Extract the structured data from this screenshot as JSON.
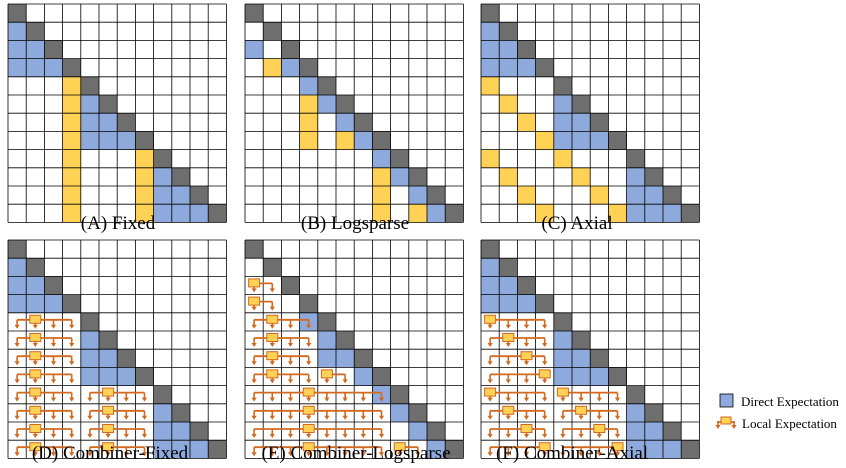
{
  "colors": {
    "direct": "#8EA9DB",
    "diagonal": "#6E6E6E",
    "local": "#FFD154",
    "arrow": "#D2691E",
    "grid": "#000000",
    "background": "#FFFFFF"
  },
  "grid_size": 12,
  "panels": [
    {
      "id": "A",
      "caption": "(A) Fixed",
      "pattern": "fixed",
      "combiner": false,
      "cells": [
        {
          "row": 1,
          "col": 0,
          "type": "direct"
        },
        {
          "row": 2,
          "col": 0,
          "type": "direct"
        },
        {
          "row": 2,
          "col": 1,
          "type": "direct"
        },
        {
          "row": 3,
          "col": 0,
          "type": "direct"
        },
        {
          "row": 3,
          "col": 1,
          "type": "direct"
        },
        {
          "row": 3,
          "col": 2,
          "type": "direct"
        },
        {
          "row": 4,
          "col": 3,
          "type": "local"
        },
        {
          "row": 5,
          "col": 3,
          "type": "local"
        },
        {
          "row": 5,
          "col": 4,
          "type": "direct"
        },
        {
          "row": 6,
          "col": 3,
          "type": "local"
        },
        {
          "row": 6,
          "col": 4,
          "type": "direct"
        },
        {
          "row": 6,
          "col": 5,
          "type": "direct"
        },
        {
          "row": 7,
          "col": 3,
          "type": "local"
        },
        {
          "row": 7,
          "col": 4,
          "type": "direct"
        },
        {
          "row": 7,
          "col": 5,
          "type": "direct"
        },
        {
          "row": 7,
          "col": 6,
          "type": "direct"
        },
        {
          "row": 8,
          "col": 3,
          "type": "local"
        },
        {
          "row": 8,
          "col": 7,
          "type": "local"
        },
        {
          "row": 9,
          "col": 3,
          "type": "local"
        },
        {
          "row": 9,
          "col": 7,
          "type": "local"
        },
        {
          "row": 9,
          "col": 8,
          "type": "direct"
        },
        {
          "row": 10,
          "col": 3,
          "type": "local"
        },
        {
          "row": 10,
          "col": 7,
          "type": "local"
        },
        {
          "row": 10,
          "col": 8,
          "type": "direct"
        },
        {
          "row": 10,
          "col": 9,
          "type": "direct"
        },
        {
          "row": 11,
          "col": 3,
          "type": "local"
        },
        {
          "row": 11,
          "col": 7,
          "type": "local"
        },
        {
          "row": 11,
          "col": 8,
          "type": "direct"
        },
        {
          "row": 11,
          "col": 9,
          "type": "direct"
        },
        {
          "row": 11,
          "col": 10,
          "type": "direct"
        }
      ]
    },
    {
      "id": "B",
      "caption": "(B) Logsparse",
      "pattern": "logsparse",
      "combiner": false,
      "cells": [
        {
          "row": 2,
          "col": 0,
          "type": "direct"
        },
        {
          "row": 3,
          "col": 1,
          "type": "local"
        },
        {
          "row": 3,
          "col": 2,
          "type": "direct"
        },
        {
          "row": 4,
          "col": 3,
          "type": "direct"
        },
        {
          "row": 5,
          "col": 3,
          "type": "local"
        },
        {
          "row": 5,
          "col": 4,
          "type": "direct"
        },
        {
          "row": 6,
          "col": 3,
          "type": "local"
        },
        {
          "row": 6,
          "col": 5,
          "type": "direct"
        },
        {
          "row": 7,
          "col": 3,
          "type": "local"
        },
        {
          "row": 7,
          "col": 5,
          "type": "local"
        },
        {
          "row": 7,
          "col": 6,
          "type": "direct"
        },
        {
          "row": 8,
          "col": 7,
          "type": "direct"
        },
        {
          "row": 9,
          "col": 7,
          "type": "local"
        },
        {
          "row": 9,
          "col": 8,
          "type": "direct"
        },
        {
          "row": 10,
          "col": 7,
          "type": "local"
        },
        {
          "row": 10,
          "col": 9,
          "type": "direct"
        },
        {
          "row": 11,
          "col": 7,
          "type": "local"
        },
        {
          "row": 11,
          "col": 9,
          "type": "local"
        },
        {
          "row": 11,
          "col": 10,
          "type": "direct"
        }
      ]
    },
    {
      "id": "C",
      "caption": "(C) Axial",
      "pattern": "axial",
      "combiner": false,
      "cells": [
        {
          "row": 1,
          "col": 0,
          "type": "direct"
        },
        {
          "row": 2,
          "col": 0,
          "type": "direct"
        },
        {
          "row": 2,
          "col": 1,
          "type": "direct"
        },
        {
          "row": 3,
          "col": 0,
          "type": "direct"
        },
        {
          "row": 3,
          "col": 1,
          "type": "direct"
        },
        {
          "row": 3,
          "col": 2,
          "type": "direct"
        },
        {
          "row": 4,
          "col": 0,
          "type": "local"
        },
        {
          "row": 5,
          "col": 1,
          "type": "local"
        },
        {
          "row": 5,
          "col": 4,
          "type": "direct"
        },
        {
          "row": 6,
          "col": 2,
          "type": "local"
        },
        {
          "row": 6,
          "col": 4,
          "type": "direct"
        },
        {
          "row": 6,
          "col": 5,
          "type": "direct"
        },
        {
          "row": 7,
          "col": 3,
          "type": "local"
        },
        {
          "row": 7,
          "col": 4,
          "type": "direct"
        },
        {
          "row": 7,
          "col": 5,
          "type": "direct"
        },
        {
          "row": 7,
          "col": 6,
          "type": "direct"
        },
        {
          "row": 8,
          "col": 0,
          "type": "local"
        },
        {
          "row": 8,
          "col": 4,
          "type": "local"
        },
        {
          "row": 9,
          "col": 1,
          "type": "local"
        },
        {
          "row": 9,
          "col": 5,
          "type": "local"
        },
        {
          "row": 9,
          "col": 8,
          "type": "direct"
        },
        {
          "row": 10,
          "col": 2,
          "type": "local"
        },
        {
          "row": 10,
          "col": 6,
          "type": "local"
        },
        {
          "row": 10,
          "col": 8,
          "type": "direct"
        },
        {
          "row": 10,
          "col": 9,
          "type": "direct"
        },
        {
          "row": 11,
          "col": 3,
          "type": "local"
        },
        {
          "row": 11,
          "col": 7,
          "type": "local"
        },
        {
          "row": 11,
          "col": 8,
          "type": "direct"
        },
        {
          "row": 11,
          "col": 9,
          "type": "direct"
        },
        {
          "row": 11,
          "col": 10,
          "type": "direct"
        }
      ]
    },
    {
      "id": "D",
      "caption": "(D) Combiner-Fixed",
      "pattern": "fixed",
      "combiner": true,
      "cells": [
        {
          "row": 1,
          "col": 0,
          "type": "direct"
        },
        {
          "row": 2,
          "col": 0,
          "type": "direct"
        },
        {
          "row": 2,
          "col": 1,
          "type": "direct"
        },
        {
          "row": 3,
          "col": 0,
          "type": "direct"
        },
        {
          "row": 3,
          "col": 1,
          "type": "direct"
        },
        {
          "row": 3,
          "col": 2,
          "type": "direct"
        },
        {
          "row": 5,
          "col": 4,
          "type": "direct"
        },
        {
          "row": 6,
          "col": 4,
          "type": "direct"
        },
        {
          "row": 6,
          "col": 5,
          "type": "direct"
        },
        {
          "row": 7,
          "col": 4,
          "type": "direct"
        },
        {
          "row": 7,
          "col": 5,
          "type": "direct"
        },
        {
          "row": 7,
          "col": 6,
          "type": "direct"
        },
        {
          "row": 9,
          "col": 8,
          "type": "direct"
        },
        {
          "row": 10,
          "col": 8,
          "type": "direct"
        },
        {
          "row": 10,
          "col": 9,
          "type": "direct"
        },
        {
          "row": 11,
          "col": 8,
          "type": "direct"
        },
        {
          "row": 11,
          "col": 9,
          "type": "direct"
        },
        {
          "row": 11,
          "col": 10,
          "type": "direct"
        }
      ],
      "local_groups": [
        {
          "row": 4,
          "col": 1,
          "span": [
            0,
            3
          ]
        },
        {
          "row": 5,
          "col": 1,
          "span": [
            0,
            3
          ]
        },
        {
          "row": 6,
          "col": 1,
          "span": [
            0,
            3
          ]
        },
        {
          "row": 7,
          "col": 1,
          "span": [
            0,
            3
          ]
        },
        {
          "row": 8,
          "col": 1,
          "span": [
            0,
            3
          ]
        },
        {
          "row": 9,
          "col": 1,
          "span": [
            0,
            3
          ]
        },
        {
          "row": 10,
          "col": 1,
          "span": [
            0,
            3
          ]
        },
        {
          "row": 11,
          "col": 1,
          "span": [
            0,
            3
          ]
        },
        {
          "row": 8,
          "col": 5,
          "span": [
            4,
            7
          ]
        },
        {
          "row": 9,
          "col": 5,
          "span": [
            4,
            7
          ]
        },
        {
          "row": 10,
          "col": 5,
          "span": [
            4,
            7
          ]
        },
        {
          "row": 11,
          "col": 5,
          "span": [
            4,
            7
          ]
        }
      ]
    },
    {
      "id": "E",
      "caption": "(E) Combiner-Logsparse",
      "pattern": "logsparse",
      "combiner": true,
      "cells": [
        {
          "row": 4,
          "col": 3,
          "type": "direct"
        },
        {
          "row": 5,
          "col": 4,
          "type": "direct"
        },
        {
          "row": 6,
          "col": 4,
          "type": "direct"
        },
        {
          "row": 6,
          "col": 5,
          "type": "direct"
        },
        {
          "row": 7,
          "col": 6,
          "type": "direct"
        },
        {
          "row": 8,
          "col": 7,
          "type": "direct"
        },
        {
          "row": 9,
          "col": 8,
          "type": "direct"
        },
        {
          "row": 10,
          "col": 9,
          "type": "direct"
        },
        {
          "row": 11,
          "col": 10,
          "type": "direct"
        }
      ],
      "local_groups": [
        {
          "row": 2,
          "col": 0,
          "span": [
            0,
            1
          ]
        },
        {
          "row": 3,
          "col": 0,
          "span": [
            0,
            1
          ]
        },
        {
          "row": 4,
          "col": 1,
          "span": [
            0,
            3
          ]
        },
        {
          "row": 5,
          "col": 1,
          "span": [
            0,
            3
          ]
        },
        {
          "row": 6,
          "col": 1,
          "span": [
            0,
            3
          ]
        },
        {
          "row": 7,
          "col": 1,
          "span": [
            0,
            3
          ]
        },
        {
          "row": 7,
          "col": 4,
          "span": [
            4,
            5
          ]
        },
        {
          "row": 8,
          "col": 3,
          "span": [
            0,
            7
          ]
        },
        {
          "row": 9,
          "col": 3,
          "span": [
            0,
            7
          ]
        },
        {
          "row": 10,
          "col": 3,
          "span": [
            0,
            7
          ]
        },
        {
          "row": 11,
          "col": 3,
          "span": [
            0,
            7
          ]
        },
        {
          "row": 11,
          "col": 8,
          "span": [
            8,
            9
          ]
        }
      ]
    },
    {
      "id": "F",
      "caption": "(F) Combiner-Axial",
      "pattern": "axial",
      "combiner": true,
      "cells": [
        {
          "row": 1,
          "col": 0,
          "type": "direct"
        },
        {
          "row": 2,
          "col": 0,
          "type": "direct"
        },
        {
          "row": 2,
          "col": 1,
          "type": "direct"
        },
        {
          "row": 3,
          "col": 0,
          "type": "direct"
        },
        {
          "row": 3,
          "col": 1,
          "type": "direct"
        },
        {
          "row": 3,
          "col": 2,
          "type": "direct"
        },
        {
          "row": 5,
          "col": 4,
          "type": "direct"
        },
        {
          "row": 6,
          "col": 4,
          "type": "direct"
        },
        {
          "row": 6,
          "col": 5,
          "type": "direct"
        },
        {
          "row": 7,
          "col": 4,
          "type": "direct"
        },
        {
          "row": 7,
          "col": 5,
          "type": "direct"
        },
        {
          "row": 7,
          "col": 6,
          "type": "direct"
        },
        {
          "row": 9,
          "col": 8,
          "type": "direct"
        },
        {
          "row": 10,
          "col": 8,
          "type": "direct"
        },
        {
          "row": 10,
          "col": 9,
          "type": "direct"
        },
        {
          "row": 11,
          "col": 8,
          "type": "direct"
        },
        {
          "row": 11,
          "col": 9,
          "type": "direct"
        },
        {
          "row": 11,
          "col": 10,
          "type": "direct"
        }
      ],
      "local_groups": [
        {
          "row": 4,
          "col": 0,
          "span": [
            0,
            3
          ]
        },
        {
          "row": 5,
          "col": 1,
          "span": [
            0,
            3
          ]
        },
        {
          "row": 6,
          "col": 2,
          "span": [
            0,
            3
          ]
        },
        {
          "row": 7,
          "col": 3,
          "span": [
            0,
            3
          ]
        },
        {
          "row": 8,
          "col": 0,
          "span": [
            0,
            3
          ]
        },
        {
          "row": 9,
          "col": 1,
          "span": [
            0,
            3
          ]
        },
        {
          "row": 10,
          "col": 2,
          "span": [
            0,
            3
          ]
        },
        {
          "row": 11,
          "col": 3,
          "span": [
            0,
            3
          ]
        },
        {
          "row": 8,
          "col": 4,
          "span": [
            4,
            7
          ]
        },
        {
          "row": 9,
          "col": 5,
          "span": [
            4,
            7
          ]
        },
        {
          "row": 10,
          "col": 6,
          "span": [
            4,
            7
          ]
        },
        {
          "row": 11,
          "col": 7,
          "span": [
            4,
            7
          ]
        }
      ]
    }
  ],
  "legend": {
    "direct_label": "Direct Expectation",
    "local_label": "Local Expectation"
  }
}
